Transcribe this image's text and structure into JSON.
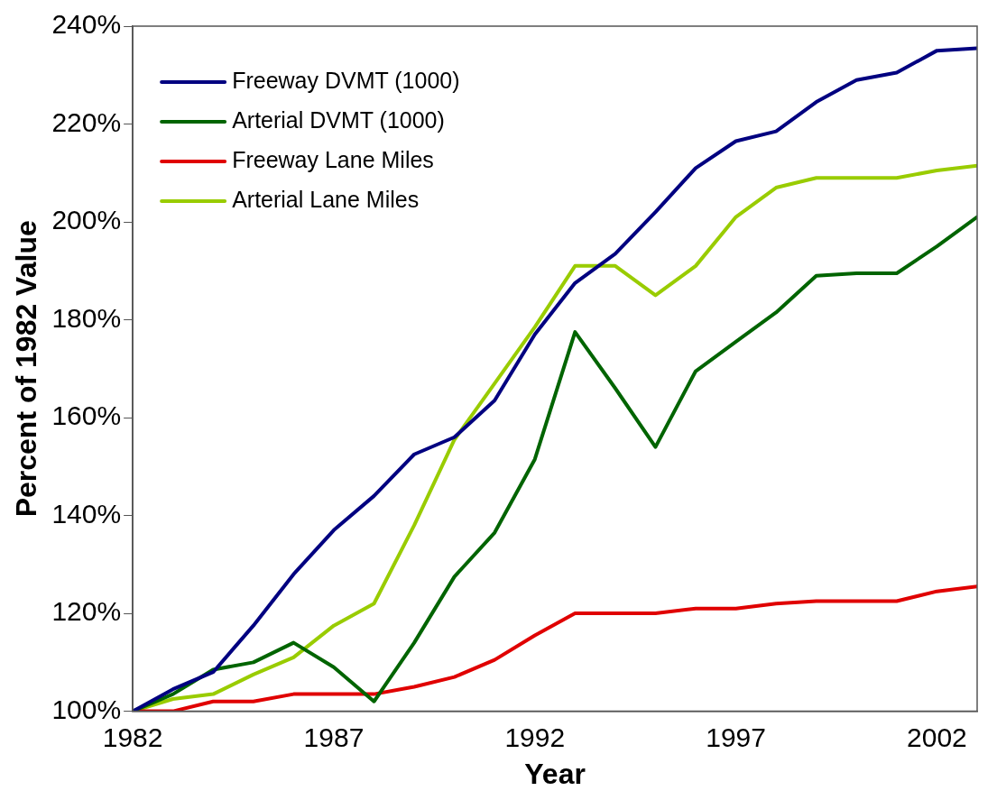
{
  "chart_data": {
    "type": "line",
    "xlabel": "Year",
    "ylabel": "Percent of 1982 Value",
    "x": [
      1982,
      1983,
      1984,
      1985,
      1986,
      1987,
      1988,
      1989,
      1990,
      1991,
      1992,
      1993,
      1994,
      1995,
      1996,
      1997,
      1998,
      1999,
      2000,
      2001,
      2002,
      2003
    ],
    "series": [
      {
        "name": "Freeway DVMT (1000)",
        "color": "#000080",
        "values": [
          100,
          104.5,
          108,
          117.5,
          128,
          137,
          144,
          152.5,
          156,
          163.5,
          177,
          187.5,
          193.5,
          202,
          211,
          216.5,
          218.5,
          224.5,
          229,
          230.5,
          235,
          235.5
        ]
      },
      {
        "name": "Arterial DVMT (1000)",
        "color": "#006400",
        "values": [
          100,
          103.5,
          108.5,
          110,
          114,
          109,
          102,
          114,
          127.5,
          136.5,
          151.5,
          177.5,
          166,
          154,
          169.5,
          175.5,
          181.5,
          189,
          189.5,
          189.5,
          195,
          201
        ]
      },
      {
        "name": "Freeway Lane Miles",
        "color": "#e00000",
        "values": [
          100,
          100,
          102,
          102,
          103.5,
          103.5,
          103.5,
          105,
          107,
          110.5,
          115.5,
          120,
          120,
          120,
          121,
          121,
          122,
          122.5,
          122.5,
          122.5,
          124.5,
          125.5
        ]
      },
      {
        "name": "Arterial Lane Miles",
        "color": "#99cc00",
        "values": [
          100,
          102.5,
          103.5,
          107.5,
          111,
          117.5,
          122,
          138,
          155.5,
          167,
          178.5,
          191,
          191,
          185,
          191,
          201,
          207,
          209,
          209,
          209,
          210.5,
          211.5
        ]
      }
    ],
    "xlim": [
      1982,
      2003
    ],
    "xticks": [
      1982,
      1987,
      1992,
      1997,
      2002
    ],
    "ylim": [
      100,
      240
    ],
    "yticks": [
      {
        "value": 100,
        "label": "100%"
      },
      {
        "value": 120,
        "label": "120%"
      },
      {
        "value": 140,
        "label": "140%"
      },
      {
        "value": 160,
        "label": "160%"
      },
      {
        "value": 180,
        "label": "180%"
      },
      {
        "value": 200,
        "label": "200%"
      },
      {
        "value": 220,
        "label": "220%"
      },
      {
        "value": 240,
        "label": "240%"
      }
    ],
    "grid": false,
    "legend": "top left",
    "marker": "none",
    "line_style": "solid"
  }
}
